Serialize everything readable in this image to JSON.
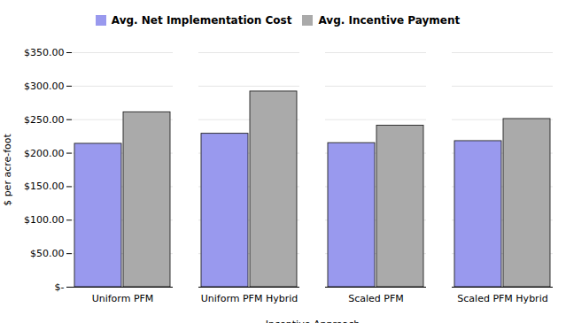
{
  "chart_data": {
    "type": "bar",
    "categories": [
      "Uniform PFM",
      "Uniform PFM Hybrid",
      "Scaled PFM",
      "Scaled PFM Hybrid"
    ],
    "series": [
      {
        "name": "Avg. Net Implementation Cost",
        "color": "#9999EE",
        "values": [
          214,
          229,
          215,
          218
        ]
      },
      {
        "name": "Avg. Incentive Payment",
        "color": "#AAAAAA",
        "values": [
          261,
          292,
          241,
          251
        ]
      }
    ],
    "xlabel": "Incentive Approach",
    "ylabel": "$ per acre-foot",
    "ylim": [
      0,
      350
    ],
    "yticks": [
      {
        "value": 0,
        "label": "$-"
      },
      {
        "value": 50,
        "label": "$50.00"
      },
      {
        "value": 100,
        "label": "$100.00"
      },
      {
        "value": 150,
        "label": "$150.00"
      },
      {
        "value": 200,
        "label": "$200.00"
      },
      {
        "value": 250,
        "label": "$250.00"
      },
      {
        "value": 300,
        "label": "$300.00"
      },
      {
        "value": 350,
        "label": "$350.00"
      }
    ],
    "grid": true,
    "legend": "top"
  }
}
